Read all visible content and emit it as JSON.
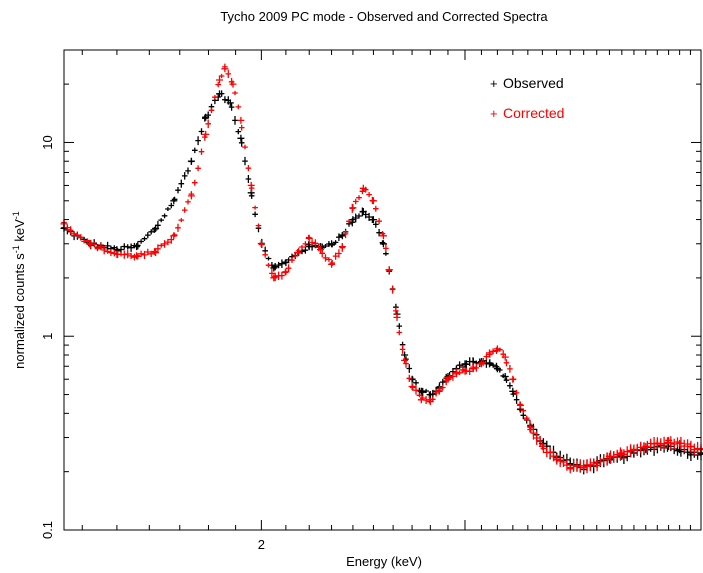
{
  "chart_data": {
    "type": "scatter",
    "title": "Tycho 2009 PC mode - Observed and Corrected Spectra",
    "xlabel": "Energy (keV)",
    "ylabel_base": "normalized counts s",
    "ylabel_exp1": "-1",
    "ylabel_mid": " keV",
    "ylabel_exp2": "-1",
    "x_scale": "log",
    "y_scale": "log",
    "xlim": [
      1.35,
      4.8
    ],
    "ylim": [
      0.1,
      30
    ],
    "x_ticks_major": [
      2,
      3
    ],
    "x_tick_labels": [
      {
        "value": 2,
        "label": "2"
      }
    ],
    "y_ticks_major": [
      0.1,
      1,
      10
    ],
    "y_tick_labels": [
      {
        "value": 0.1,
        "label": "0.1"
      },
      {
        "value": 1,
        "label": "1"
      },
      {
        "value": 10,
        "label": "10"
      }
    ],
    "legend": {
      "position": "top-right",
      "entries": [
        {
          "marker": "+",
          "label": "Observed",
          "color": "#000000"
        },
        {
          "marker": "+",
          "label": "Corrected",
          "color": "#ff0000"
        }
      ]
    },
    "series": [
      {
        "name": "Observed",
        "color": "#000000",
        "points": [
          [
            1.35,
            3.6
          ],
          [
            1.42,
            3.0
          ],
          [
            1.5,
            2.8
          ],
          [
            1.56,
            2.9
          ],
          [
            1.62,
            3.6
          ],
          [
            1.68,
            5.0
          ],
          [
            1.74,
            8.0
          ],
          [
            1.79,
            13.5
          ],
          [
            1.84,
            17.8
          ],
          [
            1.88,
            16.0
          ],
          [
            1.92,
            10.5
          ],
          [
            1.96,
            5.5
          ],
          [
            2.0,
            3.0
          ],
          [
            2.05,
            2.25
          ],
          [
            2.1,
            2.4
          ],
          [
            2.15,
            2.7
          ],
          [
            2.2,
            2.9
          ],
          [
            2.25,
            2.9
          ],
          [
            2.3,
            3.0
          ],
          [
            2.35,
            3.3
          ],
          [
            2.4,
            4.0
          ],
          [
            2.45,
            4.4
          ],
          [
            2.5,
            4.0
          ],
          [
            2.55,
            3.0
          ],
          [
            2.58,
            2.2
          ],
          [
            2.62,
            1.3
          ],
          [
            2.66,
            0.8
          ],
          [
            2.7,
            0.6
          ],
          [
            2.75,
            0.52
          ],
          [
            2.8,
            0.5
          ],
          [
            2.85,
            0.54
          ],
          [
            2.9,
            0.62
          ],
          [
            2.95,
            0.68
          ],
          [
            3.0,
            0.72
          ],
          [
            3.05,
            0.74
          ],
          [
            3.1,
            0.74
          ],
          [
            3.15,
            0.72
          ],
          [
            3.2,
            0.68
          ],
          [
            3.25,
            0.62
          ],
          [
            3.3,
            0.52
          ],
          [
            3.35,
            0.42
          ],
          [
            3.42,
            0.34
          ],
          [
            3.5,
            0.28
          ],
          [
            3.6,
            0.24
          ],
          [
            3.7,
            0.22
          ],
          [
            3.8,
            0.21
          ],
          [
            3.9,
            0.22
          ],
          [
            4.0,
            0.23
          ],
          [
            4.1,
            0.24
          ],
          [
            4.2,
            0.25
          ],
          [
            4.3,
            0.26
          ],
          [
            4.4,
            0.27
          ],
          [
            4.5,
            0.27
          ],
          [
            4.6,
            0.26
          ],
          [
            4.7,
            0.25
          ],
          [
            4.8,
            0.25
          ]
        ]
      },
      {
        "name": "Corrected",
        "color": "#ff0000",
        "points": [
          [
            1.35,
            3.8
          ],
          [
            1.42,
            3.0
          ],
          [
            1.5,
            2.65
          ],
          [
            1.56,
            2.6
          ],
          [
            1.62,
            2.7
          ],
          [
            1.68,
            3.3
          ],
          [
            1.74,
            5.3
          ],
          [
            1.79,
            11.0
          ],
          [
            1.84,
            21.0
          ],
          [
            1.86,
            24.0
          ],
          [
            1.89,
            20.0
          ],
          [
            1.92,
            13.0
          ],
          [
            1.96,
            6.0
          ],
          [
            2.0,
            3.0
          ],
          [
            2.05,
            2.0
          ],
          [
            2.1,
            2.15
          ],
          [
            2.15,
            2.7
          ],
          [
            2.2,
            3.2
          ],
          [
            2.25,
            2.8
          ],
          [
            2.3,
            2.35
          ],
          [
            2.35,
            2.9
          ],
          [
            2.4,
            4.6
          ],
          [
            2.45,
            5.8
          ],
          [
            2.5,
            5.0
          ],
          [
            2.55,
            3.3
          ],
          [
            2.58,
            2.2
          ],
          [
            2.62,
            1.25
          ],
          [
            2.66,
            0.75
          ],
          [
            2.7,
            0.55
          ],
          [
            2.75,
            0.47
          ],
          [
            2.8,
            0.46
          ],
          [
            2.85,
            0.52
          ],
          [
            2.9,
            0.6
          ],
          [
            2.95,
            0.64
          ],
          [
            3.0,
            0.66
          ],
          [
            3.05,
            0.68
          ],
          [
            3.1,
            0.72
          ],
          [
            3.15,
            0.82
          ],
          [
            3.2,
            0.86
          ],
          [
            3.25,
            0.78
          ],
          [
            3.3,
            0.6
          ],
          [
            3.35,
            0.44
          ],
          [
            3.42,
            0.33
          ],
          [
            3.5,
            0.27
          ],
          [
            3.6,
            0.23
          ],
          [
            3.7,
            0.21
          ],
          [
            3.8,
            0.21
          ],
          [
            3.9,
            0.22
          ],
          [
            4.0,
            0.24
          ],
          [
            4.1,
            0.25
          ],
          [
            4.2,
            0.26
          ],
          [
            4.3,
            0.27
          ],
          [
            4.4,
            0.28
          ],
          [
            4.5,
            0.29
          ],
          [
            4.6,
            0.28
          ],
          [
            4.7,
            0.27
          ],
          [
            4.8,
            0.26
          ]
        ]
      }
    ]
  }
}
